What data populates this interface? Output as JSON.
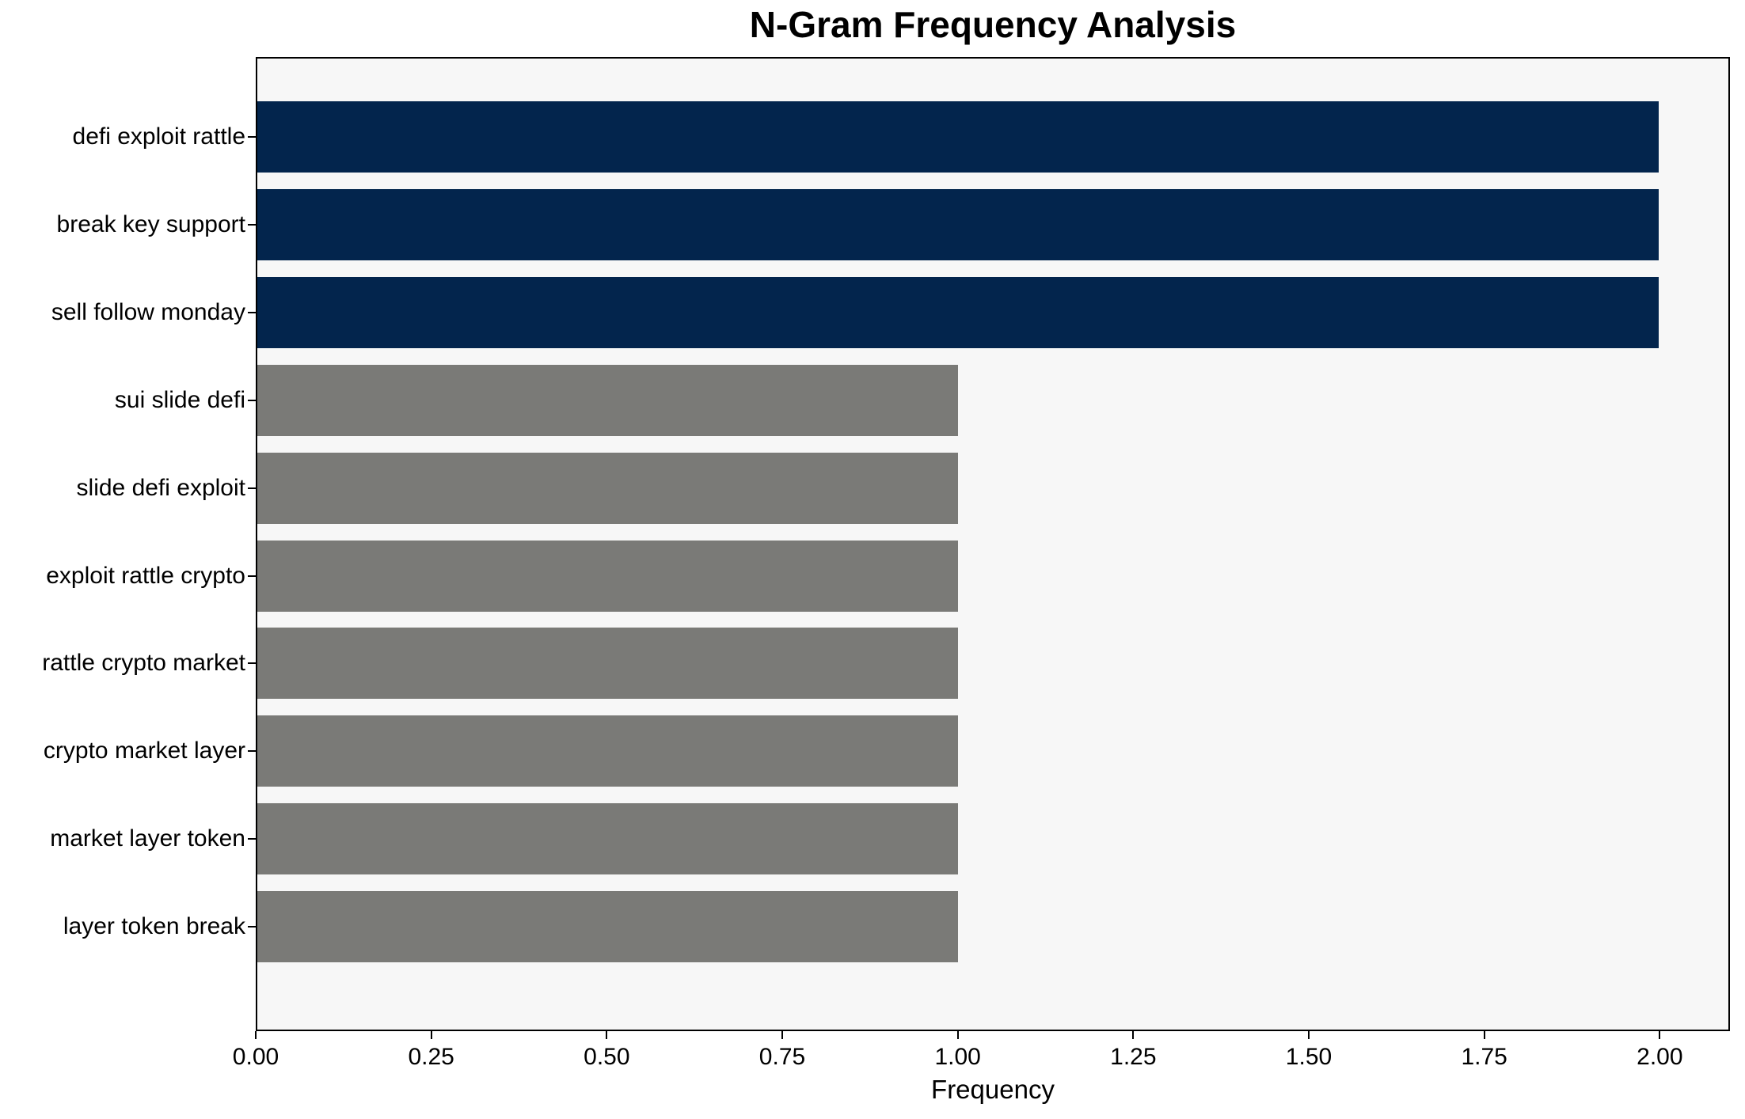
{
  "figure": {
    "background": "#ffffff",
    "plot_background": "#f7f7f7",
    "spine_color": "#000000"
  },
  "chart_data": {
    "type": "bar",
    "orientation": "horizontal",
    "title": "N-Gram Frequency Analysis",
    "xlabel": "Frequency",
    "ylabel": "",
    "categories": [
      "defi exploit rattle",
      "break key support",
      "sell follow monday",
      "sui slide defi",
      "slide defi exploit",
      "exploit rattle crypto",
      "rattle crypto market",
      "crypto market layer",
      "market layer token",
      "layer token break"
    ],
    "values": [
      2,
      2,
      2,
      1,
      1,
      1,
      1,
      1,
      1,
      1
    ],
    "bar_colors": [
      "#03254d",
      "#03254d",
      "#03254d",
      "#7a7a77",
      "#7a7a77",
      "#7a7a77",
      "#7a7a77",
      "#7a7a77",
      "#7a7a77",
      "#7a7a77"
    ],
    "highlight_color": "#03254d",
    "default_color": "#7a7a77",
    "xlim": [
      0,
      2.1
    ],
    "x_tick_values": [
      0,
      0.25,
      0.5,
      0.75,
      1.0,
      1.25,
      1.5,
      1.75,
      2.0
    ],
    "x_tick_labels": [
      "0.00",
      "0.25",
      "0.50",
      "0.75",
      "1.00",
      "1.25",
      "1.50",
      "1.75",
      "2.00"
    ],
    "grid": false,
    "legend": "none"
  }
}
